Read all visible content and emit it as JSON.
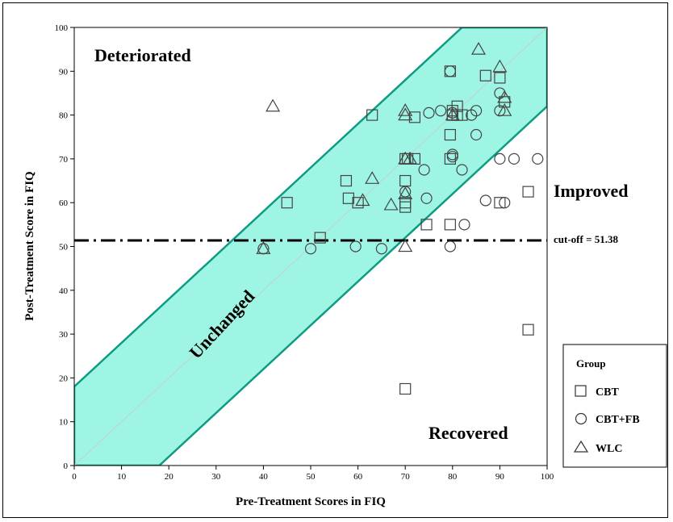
{
  "chart_data": {
    "type": "scatter",
    "xlabel": "Pre-Treatment Scores in FIQ",
    "ylabel": "Post-Treatment Score in FIQ",
    "xlim": [
      0,
      100
    ],
    "ylim": [
      0,
      100
    ],
    "x_ticks": [
      "0",
      "10",
      "20",
      "30",
      "40",
      "50",
      "60",
      "70",
      "80",
      "90",
      "100"
    ],
    "y_ticks": [
      "0",
      "10",
      "20",
      "30",
      "40",
      "50",
      "60",
      "70",
      "80",
      "90",
      "100"
    ],
    "grid": false,
    "band_color": "#9ff5e3",
    "band_edge_color": "#0e9b83",
    "band_half_width": 18,
    "cutoff": {
      "y": 51.38,
      "label": "cut-off = 51.38"
    },
    "region_labels": {
      "deteriorated": "Deteriorated",
      "improved": "Improved",
      "recovered": "Recovered",
      "unchanged": "Unchanged"
    },
    "legend": {
      "title": "Group",
      "position": "bottom-right-outside",
      "entries": [
        {
          "name": "CBT",
          "marker": "square"
        },
        {
          "name": "CBT+FB",
          "marker": "circle"
        },
        {
          "name": "WLC",
          "marker": "triangle"
        }
      ]
    },
    "series": [
      {
        "name": "CBT",
        "marker": "square",
        "points": [
          [
            96,
            31
          ],
          [
            70,
            17.5
          ],
          [
            63,
            80
          ],
          [
            72,
            79.5
          ],
          [
            81,
            82
          ],
          [
            90,
            88.5
          ],
          [
            91,
            83
          ],
          [
            87,
            89
          ],
          [
            79.5,
            90
          ],
          [
            80,
            81
          ],
          [
            80,
            80
          ],
          [
            81,
            80
          ],
          [
            82,
            80
          ],
          [
            79.5,
            75.5
          ],
          [
            79.5,
            70
          ],
          [
            70,
            70
          ],
          [
            70.5,
            70
          ],
          [
            72,
            70
          ],
          [
            57.5,
            65
          ],
          [
            70,
            65
          ],
          [
            58,
            61
          ],
          [
            60,
            60
          ],
          [
            45,
            60
          ],
          [
            70,
            60
          ],
          [
            70,
            59
          ],
          [
            90,
            60
          ],
          [
            96,
            62.5
          ],
          [
            74.5,
            55
          ],
          [
            79.5,
            55
          ],
          [
            52,
            52
          ]
        ]
      },
      {
        "name": "CBT+FB",
        "marker": "circle",
        "points": [
          [
            79.5,
            90
          ],
          [
            75,
            80.5
          ],
          [
            77.5,
            81
          ],
          [
            84,
            80
          ],
          [
            85,
            81
          ],
          [
            90,
            85
          ],
          [
            90,
            81
          ],
          [
            80,
            80.5
          ],
          [
            80,
            70.5
          ],
          [
            80,
            71
          ],
          [
            74,
            67.5
          ],
          [
            82,
            67.5
          ],
          [
            85,
            75.5
          ],
          [
            90,
            70
          ],
          [
            93,
            70
          ],
          [
            98,
            70
          ],
          [
            70,
            62.5
          ],
          [
            74.5,
            61
          ],
          [
            87,
            60.5
          ],
          [
            91,
            60
          ],
          [
            82.5,
            55
          ],
          [
            79.5,
            50
          ],
          [
            50,
            49.5
          ],
          [
            59.5,
            50
          ],
          [
            65,
            49.5
          ],
          [
            40,
            49.5
          ]
        ]
      },
      {
        "name": "WLC",
        "marker": "triangle",
        "points": [
          [
            42,
            82
          ],
          [
            85.5,
            95
          ],
          [
            90,
            91
          ],
          [
            91,
            84
          ],
          [
            91,
            81
          ],
          [
            70,
            81
          ],
          [
            70,
            80
          ],
          [
            80,
            80
          ],
          [
            70,
            70
          ],
          [
            71,
            70
          ],
          [
            63,
            65.5
          ],
          [
            70,
            62
          ],
          [
            61,
            60.5
          ],
          [
            67,
            59.5
          ],
          [
            40,
            49.5
          ],
          [
            70,
            50
          ]
        ]
      }
    ]
  }
}
